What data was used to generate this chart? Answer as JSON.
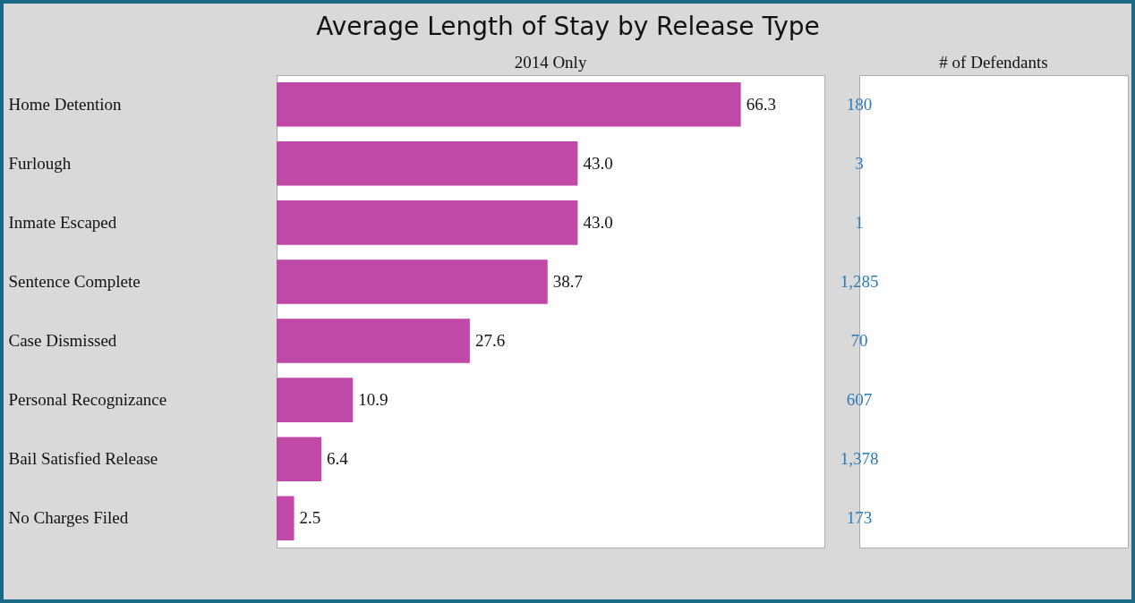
{
  "chart_data": [
    {
      "type": "bar",
      "orientation": "horizontal",
      "title": "Average Length of Stay by Release Type",
      "subtitle": "2014 Only",
      "categories": [
        "Home Detention",
        "Furlough",
        "Inmate Escaped",
        "Sentence Complete",
        "Case Dismissed",
        "Personal Recognizance",
        "Bail Satisfied Release",
        "No Charges Filed"
      ],
      "values": [
        66.3,
        43.0,
        43.0,
        38.7,
        27.6,
        10.9,
        6.4,
        2.5
      ],
      "value_labels": [
        "66.3",
        "43.0",
        "43.0",
        "38.7",
        "27.6",
        "10.9",
        "6.4",
        "2.5"
      ],
      "color": "#c049a8"
    },
    {
      "type": "other",
      "title": "# of Defendants",
      "annotations": [
        "180",
        "3",
        "1",
        "1,285",
        "70",
        "607",
        "1,378",
        "173"
      ],
      "color": "#2a7ab9"
    }
  ]
}
